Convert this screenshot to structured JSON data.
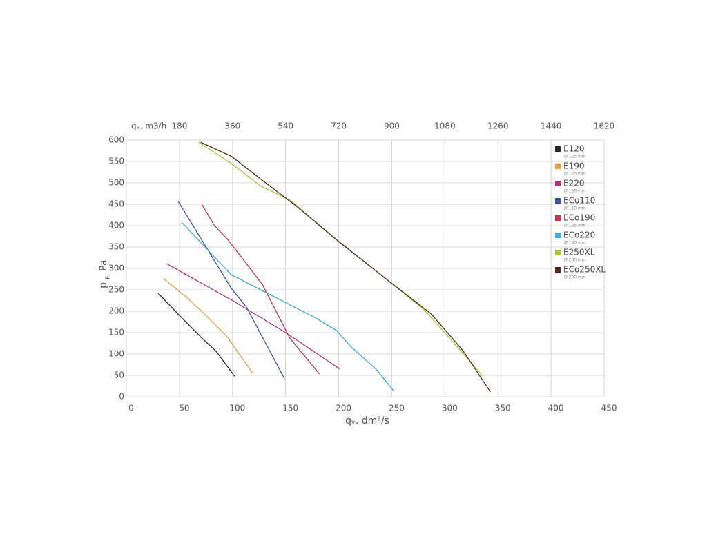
{
  "chart_data": {
    "type": "line",
    "x_label": "qᵥ. dm³/s",
    "y_label": "p",
    "y_label_sub": "F,",
    "y_label_unit": "Pa",
    "x2_label": "qᵥ. m3/h",
    "xlim": [
      0,
      450
    ],
    "xticks": [
      0,
      50,
      100,
      150,
      200,
      250,
      300,
      350,
      400,
      450
    ],
    "x2lim": [
      0,
      1620
    ],
    "x2ticks": [
      180,
      360,
      540,
      720,
      900,
      1080,
      1260,
      1440,
      1620
    ],
    "ylim": [
      0,
      600
    ],
    "yticks": [
      0,
      50,
      100,
      150,
      200,
      250,
      300,
      350,
      400,
      450,
      500,
      550,
      600
    ],
    "grid": true,
    "legend": "upper right",
    "series": [
      {
        "name": "E120",
        "diameter": "Ø 125 mm",
        "color": "#222222",
        "x": [
          30,
          50,
          70,
          85,
          102
        ],
        "values": [
          242,
          190,
          140,
          105,
          48
        ]
      },
      {
        "name": "E190",
        "diameter": "Ø 125 mm",
        "color": "#e0a040",
        "x": [
          35,
          57,
          75,
          95,
          119
        ],
        "values": [
          276,
          232,
          190,
          140,
          55
        ]
      },
      {
        "name": "E220",
        "diameter": "Ø 160 mm",
        "color": "#b8337a",
        "x": [
          38,
          100,
          150,
          201
        ],
        "values": [
          311,
          225,
          150,
          65
        ]
      },
      {
        "name": "ECo110",
        "diameter": "Ø 110 mm",
        "color": "#3a4f9a",
        "x": [
          49,
          99,
          113,
          149
        ],
        "values": [
          456,
          253,
          210,
          42
        ]
      },
      {
        "name": "ECo190",
        "diameter": "Ø 125 mm",
        "color": "#c0334a",
        "x": [
          71,
          83,
          96,
          128,
          154,
          182
        ],
        "values": [
          450,
          400,
          366,
          263,
          137,
          53
        ]
      },
      {
        "name": "ECo220",
        "diameter": "Ø 160 mm",
        "color": "#3aa9dc",
        "x": [
          52,
          99,
          177,
          198,
          211,
          235,
          252
        ],
        "values": [
          408,
          285,
          186,
          155,
          118,
          65,
          13
        ]
      },
      {
        "name": "E250XL",
        "diameter": "Ø 200 mm",
        "color": "#a8c43a",
        "x": [
          68,
          99,
          127,
          154,
          200,
          250,
          281,
          317,
          336
        ],
        "values": [
          595,
          545,
          492,
          460,
          363,
          265,
          202,
          102,
          48
        ]
      },
      {
        "name": "ECo250XL",
        "diameter": "Ø 200 mm",
        "color": "#4a2a1a",
        "x": [
          70,
          99,
          127,
          161,
          200,
          250,
          287,
          317,
          343
        ],
        "values": [
          595,
          562,
          508,
          444,
          363,
          265,
          194,
          108,
          11
        ]
      }
    ]
  }
}
